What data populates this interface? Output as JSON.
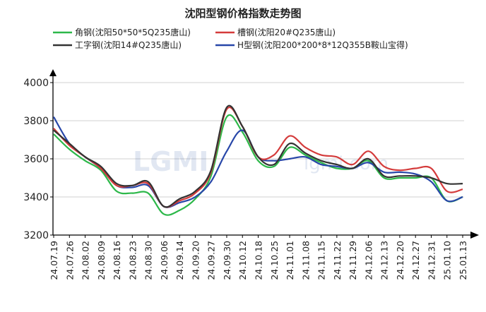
{
  "chart_data": {
    "type": "line",
    "title": "沈阳型钢价格指数走势图",
    "xlabel": "",
    "ylabel": "",
    "ylim": [
      3200,
      4000
    ],
    "yticks": [
      3200,
      3400,
      3600,
      3800,
      4000
    ],
    "grid": true,
    "legend": "top",
    "watermark": "LGMI  lgmi.com",
    "x": [
      "24.07.19",
      "24.07.26",
      "24.08.02",
      "24.08.09",
      "24.08.16",
      "24.08.23",
      "24.08.30",
      "24.09.06",
      "24.09.14",
      "24.09.20",
      "24.09.27",
      "24.09.30",
      "24.10.12",
      "24.10.18",
      "24.10.25",
      "24.11.01",
      "24.11.08",
      "24.11.15",
      "24.11.22",
      "24.11.29",
      "24.12.06",
      "24.12.13",
      "24.12.20",
      "24.12.27",
      "24.12.31",
      "25.01.10",
      "25.01.13"
    ],
    "series": [
      {
        "name": "角钢(沈阳50*50*5Q235唐山)",
        "color": "#2db84a",
        "values": [
          3730,
          3650,
          3590,
          3540,
          3430,
          3420,
          3420,
          3310,
          3330,
          3390,
          3510,
          3820,
          3740,
          3590,
          3560,
          3660,
          3620,
          3580,
          3550,
          3550,
          3590,
          3500,
          3500,
          3500,
          3500,
          3380,
          3400
        ]
      },
      {
        "name": "槽钢(沈阳20#Q235唐山)",
        "color": "#d43b3b",
        "values": [
          3760,
          3670,
          3610,
          3550,
          3460,
          3460,
          3470,
          3350,
          3380,
          3420,
          3530,
          3860,
          3770,
          3610,
          3620,
          3720,
          3660,
          3620,
          3610,
          3570,
          3640,
          3560,
          3540,
          3550,
          3550,
          3430,
          3440
        ]
      },
      {
        "name": "工字钢(沈阳14#Q235唐山)",
        "color": "#333333",
        "values": [
          3750,
          3680,
          3610,
          3560,
          3470,
          3460,
          3480,
          3350,
          3390,
          3430,
          3540,
          3870,
          3770,
          3610,
          3570,
          3680,
          3630,
          3590,
          3570,
          3550,
          3600,
          3510,
          3510,
          3510,
          3500,
          3470,
          3470
        ]
      },
      {
        "name": "H型钢(沈阳200*200*8*12Q355B鞍山宝得)",
        "color": "#2746a8",
        "values": [
          3820,
          3680,
          3610,
          3550,
          3460,
          3450,
          3460,
          3350,
          3370,
          3400,
          3480,
          3640,
          3750,
          3610,
          3590,
          3600,
          3610,
          3570,
          3560,
          3550,
          3580,
          3530,
          3530,
          3520,
          3480,
          3380,
          3400
        ]
      }
    ]
  }
}
